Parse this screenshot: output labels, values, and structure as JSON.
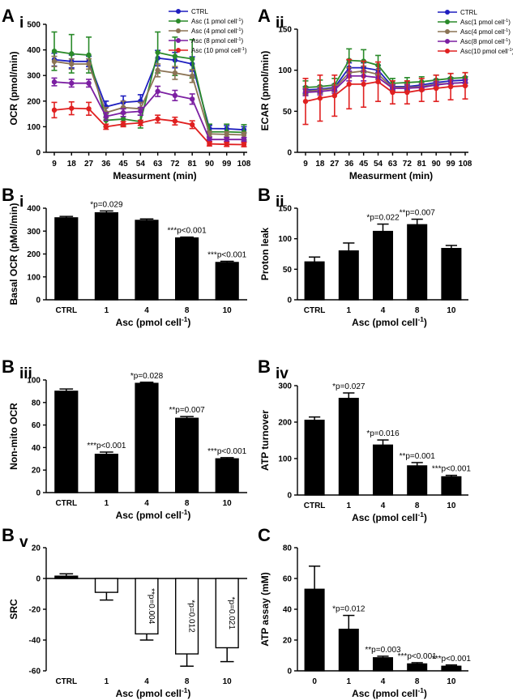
{
  "chart_data": [
    {
      "id": "Ai",
      "type": "line",
      "panel_letter": "A",
      "panel_sub": "i",
      "xlabel": "Measurment (min)",
      "ylabel": "OCR (pmol/min)",
      "x": [
        9,
        18,
        27,
        36,
        45,
        54,
        63,
        72,
        81,
        90,
        99,
        108
      ],
      "x_tick_labels": [
        "9",
        "18",
        "27",
        "36",
        "45",
        "54",
        "63",
        "72",
        "81",
        "90",
        "99",
        "108"
      ],
      "ylim": [
        0,
        500
      ],
      "y_ticks": [
        0,
        100,
        200,
        300,
        400,
        500
      ],
      "legend": "top-right",
      "series": [
        {
          "name": "CTRL",
          "color": "#1f1fbf",
          "values": [
            362,
            355,
            355,
            178,
            195,
            200,
            368,
            360,
            345,
            93,
            92,
            88
          ],
          "err": [
            25,
            25,
            20,
            22,
            25,
            25,
            30,
            30,
            28,
            12,
            12,
            12
          ]
        },
        {
          "name": "Asc (1 pmol cell-1)",
          "color": "#2a8a2a",
          "values": [
            395,
            385,
            380,
            125,
            130,
            120,
            390,
            375,
            365,
            80,
            80,
            78
          ],
          "err": [
            75,
            75,
            70,
            25,
            25,
            25,
            80,
            75,
            75,
            30,
            30,
            30
          ]
        },
        {
          "name": "Asc (4 pmol cell-1)",
          "color": "#8b7355",
          "values": [
            355,
            345,
            345,
            155,
            175,
            170,
            320,
            310,
            298,
            72,
            70,
            68
          ],
          "err": [
            20,
            20,
            20,
            20,
            25,
            25,
            25,
            25,
            25,
            10,
            10,
            10
          ]
        },
        {
          "name": "Asc (8 pmol cell-1)",
          "color": "#7b1fa2",
          "values": [
            275,
            270,
            270,
            140,
            155,
            160,
            238,
            222,
            208,
            50,
            50,
            50
          ],
          "err": [
            15,
            15,
            15,
            15,
            15,
            15,
            20,
            20,
            20,
            8,
            8,
            8
          ]
        },
        {
          "name": "Asc (10 pmol cell-1)",
          "color": "#e02020",
          "values": [
            165,
            172,
            170,
            100,
            110,
            115,
            130,
            122,
            108,
            33,
            31,
            30
          ],
          "err": [
            30,
            25,
            25,
            10,
            10,
            10,
            15,
            15,
            15,
            8,
            8,
            8
          ]
        }
      ]
    },
    {
      "id": "Aii",
      "type": "line",
      "panel_letter": "A",
      "panel_sub": "ii",
      "xlabel": "Measurment (min)",
      "ylabel": "ECAR (pmol/min)",
      "x": [
        9,
        18,
        27,
        36,
        45,
        54,
        63,
        72,
        81,
        90,
        99,
        108
      ],
      "x_tick_labels": [
        "9",
        "18",
        "27",
        "36",
        "45",
        "54",
        "63",
        "72",
        "81",
        "90",
        "99",
        "108"
      ],
      "ylim": [
        0,
        150
      ],
      "y_ticks": [
        0,
        50,
        100,
        150
      ],
      "legend": "top-right",
      "series": [
        {
          "name": "CTRL",
          "color": "#1f1fbf",
          "values": [
            76,
            77,
            79,
            103,
            103,
            100,
            80,
            80,
            82,
            85,
            87,
            88
          ],
          "err": [
            4,
            4,
            4,
            6,
            6,
            6,
            4,
            4,
            4,
            4,
            4,
            4
          ]
        },
        {
          "name": "Asc(1 pmol cell-1)",
          "color": "#2a8a2a",
          "values": [
            79,
            80,
            82,
            112,
            111,
            106,
            84,
            85,
            86,
            88,
            90,
            91
          ],
          "err": [
            8,
            8,
            8,
            14,
            14,
            12,
            6,
            6,
            6,
            6,
            6,
            6
          ]
        },
        {
          "name": "Asc(4 pmol cell-1)",
          "color": "#8b7355",
          "values": [
            74,
            76,
            78,
            97,
            99,
            95,
            79,
            79,
            80,
            83,
            84,
            85
          ],
          "err": [
            4,
            4,
            4,
            6,
            6,
            6,
            4,
            4,
            4,
            4,
            4,
            4
          ]
        },
        {
          "name": "Asc(8 pmol cell-1)",
          "color": "#7b1fa2",
          "values": [
            73,
            74,
            76,
            93,
            93,
            91,
            78,
            78,
            79,
            82,
            84,
            85
          ],
          "err": [
            4,
            4,
            4,
            6,
            6,
            6,
            4,
            4,
            4,
            4,
            4,
            4
          ]
        },
        {
          "name": "Asc(10 pmol cell-1)",
          "color": "#e02020",
          "values": [
            62,
            66,
            69,
            83,
            83,
            86,
            73,
            73,
            76,
            78,
            80,
            81
          ],
          "err": [
            28,
            28,
            25,
            30,
            28,
            24,
            14,
            14,
            14,
            16,
            16,
            16
          ]
        }
      ]
    },
    {
      "id": "Bi",
      "type": "bar",
      "panel_letter": "B",
      "panel_sub": "i",
      "xlabel": "Asc (pmol cell-1)",
      "ylabel": "Basal OCR (pMol/min)",
      "categories": [
        "CTRL",
        "1",
        "4",
        "8",
        "10"
      ],
      "values": [
        358,
        380,
        347,
        270,
        163
      ],
      "err": [
        6,
        8,
        6,
        4,
        5
      ],
      "ylim": [
        0,
        400
      ],
      "y_ticks": [
        0,
        100,
        200,
        300,
        400
      ],
      "annotations": [
        "",
        "*p=0.029",
        "",
        "***p<0.001",
        "***p<0.001"
      ]
    },
    {
      "id": "Bii",
      "type": "bar",
      "panel_letter": "B",
      "panel_sub": "ii",
      "xlabel": "Asc (pmol cell-1)",
      "ylabel": "Proton leak",
      "categories": [
        "CTRL",
        "1",
        "4",
        "8",
        "10"
      ],
      "values": [
        62,
        80,
        112,
        123,
        84
      ],
      "err": [
        8,
        13,
        12,
        9,
        5
      ],
      "ylim": [
        0,
        150
      ],
      "y_ticks": [
        0,
        50,
        100,
        150
      ],
      "annotations": [
        "",
        "",
        "*p=0.022",
        "**p=0.007",
        ""
      ]
    },
    {
      "id": "Biii",
      "type": "bar",
      "panel_letter": "B",
      "panel_sub": "iii",
      "xlabel": "Asc (pmol cell-1)",
      "ylabel": "Non-mito OCR",
      "categories": [
        "CTRL",
        "1",
        "4",
        "8",
        "10"
      ],
      "values": [
        90,
        34,
        97,
        66,
        30
      ],
      "err": [
        2,
        2,
        1,
        1.5,
        1
      ],
      "ylim": [
        0,
        100
      ],
      "y_ticks": [
        0,
        20,
        40,
        60,
        80,
        100
      ],
      "annotations": [
        "",
        "***p<0.001",
        "*p=0.028",
        "**p=0.007",
        "***p<0.001"
      ]
    },
    {
      "id": "Biv",
      "type": "bar",
      "panel_letter": "B",
      "panel_sub": "iv",
      "xlabel": "Asc (pmol cell-1)",
      "ylabel": "ATP turnover",
      "categories": [
        "CTRL",
        "1",
        "4",
        "8",
        "10"
      ],
      "values": [
        205,
        265,
        137,
        80,
        50
      ],
      "err": [
        9,
        15,
        14,
        9,
        4
      ],
      "ylim": [
        0,
        300
      ],
      "y_ticks": [
        0,
        100,
        200,
        300
      ],
      "annotations": [
        "",
        "*p=0.027",
        "*p=0.016",
        "**p=0.001",
        "***p<0.001"
      ]
    },
    {
      "id": "Bv",
      "type": "bar",
      "panel_letter": "B",
      "panel_sub": "v",
      "xlabel": "Asc (pmol cell-1)",
      "ylabel": "SRC",
      "categories": [
        "CTRL",
        "1",
        "4",
        "8",
        "10"
      ],
      "values": [
        1.5,
        -9,
        -36,
        -49,
        -45
      ],
      "err": [
        1.5,
        5,
        4,
        8,
        9
      ],
      "ylim": [
        -60,
        20
      ],
      "y_ticks": [
        -60,
        -40,
        -20,
        0,
        20
      ],
      "bar_fill": [
        "#000000",
        "#ffffff",
        "#ffffff",
        "#ffffff",
        "#ffffff"
      ],
      "annotations": [
        "",
        "",
        "**p=0.004",
        "*p=0.012",
        "*p=0.021"
      ]
    },
    {
      "id": "C",
      "type": "bar",
      "panel_letter": "C",
      "panel_sub": "",
      "xlabel": "Asc (pmol cell-1)",
      "ylabel": "ATP assay (mM)",
      "categories": [
        "0",
        "1",
        "4",
        "8",
        "10"
      ],
      "values": [
        53,
        27,
        8.5,
        4.5,
        3
      ],
      "err": [
        15,
        9,
        1,
        0.8,
        0.8
      ],
      "ylim": [
        0,
        80
      ],
      "y_ticks": [
        0,
        20,
        40,
        60,
        80
      ],
      "annotations": [
        "",
        "*p=0.012",
        "**p=0.003",
        "***p<0.001",
        "***p<0.001"
      ]
    }
  ]
}
